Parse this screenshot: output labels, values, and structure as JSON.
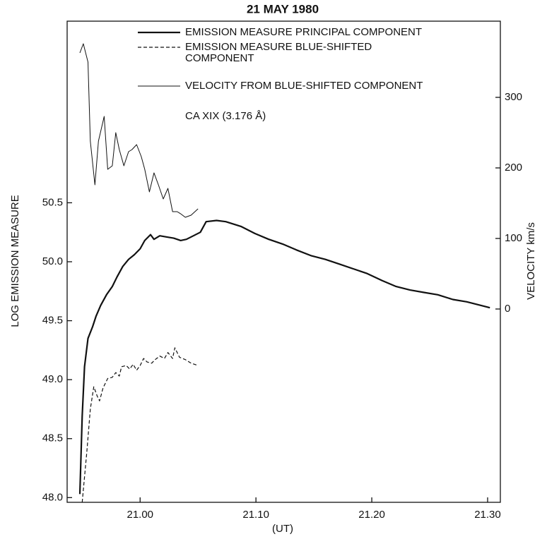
{
  "chart_data": {
    "type": "line",
    "title": "21 MAY 1980",
    "x_label": "(UT)",
    "y_label": "LOG EMISSION MEASURE",
    "y2_label": "VELOCITY km/s",
    "annotation": "CA XIX (3.176 Å)",
    "xlim": [
      20.937,
      21.311
    ],
    "xticks": [
      {
        "value": 21,
        "label": "21.00"
      },
      {
        "value": 21.1,
        "label": "21.10"
      },
      {
        "value": 21.2,
        "label": "21.20"
      },
      {
        "value": 21.3,
        "label": "21.30"
      }
    ],
    "ylim": [
      47.96,
      52.04
    ],
    "yticks": [
      {
        "value": 48,
        "label": "48.0"
      },
      48.5,
      {
        "value": 49,
        "label": "49.0"
      },
      49.5,
      {
        "value": 50,
        "label": "50.0"
      },
      50.5
    ],
    "y2lim": [
      -274,
      408
    ],
    "y2ticks": [
      0,
      100,
      200,
      300
    ],
    "legend": "upper right",
    "series": [
      {
        "name": "EMISSION MEASURE PRINCIPAL COMPONENT",
        "color": "#111111",
        "style": "solid-thick",
        "x": [
          20.948,
          20.95,
          20.952,
          20.955,
          20.959,
          20.962,
          20.966,
          20.971,
          20.976,
          20.98,
          20.985,
          20.99,
          20.995,
          21.0,
          21.004,
          21.009,
          21.012,
          21.017,
          21.023,
          21.029,
          21.035,
          21.04,
          21.046,
          21.052,
          21.057,
          21.066,
          21.074,
          21.087,
          21.099,
          21.111,
          21.123,
          21.135,
          21.148,
          21.16,
          21.172,
          21.184,
          21.196,
          21.209,
          21.221,
          21.233,
          21.245,
          21.257,
          21.27,
          21.282,
          21.294,
          21.302
        ],
        "values": [
          48.03,
          48.69,
          49.11,
          49.35,
          49.45,
          49.54,
          49.63,
          49.72,
          49.79,
          49.87,
          49.96,
          50.02,
          50.06,
          50.11,
          50.18,
          50.23,
          50.19,
          50.22,
          50.21,
          50.2,
          50.18,
          50.19,
          50.22,
          50.25,
          50.34,
          50.35,
          50.34,
          50.3,
          50.24,
          50.19,
          50.15,
          50.1,
          50.05,
          50.02,
          49.98,
          49.94,
          49.9,
          49.84,
          49.79,
          49.76,
          49.74,
          49.72,
          49.68,
          49.66,
          49.63,
          49.61
        ]
      },
      {
        "name": "EMISSION MEASURE BLUE-SHIFTED COMPONENT",
        "color": "#111111",
        "style": "dashed",
        "x": [
          20.95,
          20.954,
          20.957,
          20.96,
          20.963,
          20.965,
          20.968,
          20.972,
          20.976,
          20.979,
          20.982,
          20.984,
          20.988,
          20.991,
          20.994,
          20.997,
          21.0,
          21.003,
          21.006,
          21.01,
          21.013,
          21.017,
          21.021,
          21.024,
          21.028,
          21.03,
          21.034,
          21.039,
          21.044,
          21.05
        ],
        "values": [
          47.96,
          48.39,
          48.75,
          48.94,
          48.86,
          48.82,
          48.93,
          49.01,
          49.02,
          49.06,
          49.03,
          49.11,
          49.12,
          49.09,
          49.13,
          49.08,
          49.12,
          49.18,
          49.15,
          49.14,
          49.17,
          49.2,
          49.18,
          49.23,
          49.18,
          49.27,
          49.19,
          49.17,
          49.14,
          49.12
        ]
      },
      {
        "name": "VELOCITY FROM BLUE-SHIFTED COMPONENT",
        "color": "#111111",
        "style": "thin",
        "axis": "y2",
        "x": [
          20.948,
          20.951,
          20.955,
          20.957,
          20.961,
          20.964,
          20.969,
          20.972,
          20.976,
          20.979,
          20.982,
          20.986,
          20.99,
          20.993,
          20.997,
          21.001,
          21.004,
          21.008,
          21.012,
          21.016,
          21.02,
          21.024,
          21.028,
          21.032,
          21.035,
          21.039,
          21.044,
          21.05
        ],
        "values": [
          363,
          376,
          350,
          238,
          176,
          238,
          273,
          198,
          203,
          250,
          226,
          203,
          223,
          226,
          233,
          216,
          198,
          166,
          193,
          175,
          156,
          171,
          138,
          138,
          135,
          130,
          133,
          142
        ]
      }
    ]
  }
}
